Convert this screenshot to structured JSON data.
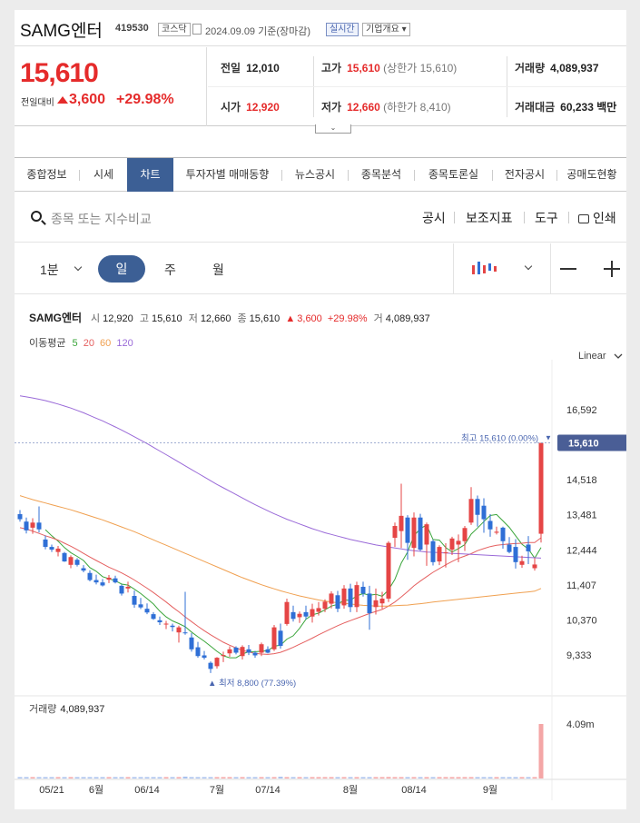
{
  "header": {
    "name": "SAMG엔터",
    "code": "419530",
    "market": "코스닥",
    "date": "2024.09.09",
    "date_suffix": "기준(장마감)",
    "realtime": "실시간",
    "company_info": "기업개요"
  },
  "price": {
    "current": "15,610",
    "change_label": "전일대비",
    "change": "3,600",
    "change_pct": "+29.98%",
    "prev_label": "전일",
    "prev": "12,010",
    "high_label": "고가",
    "high": "15,610",
    "high_sub": "(상한가 15,610)",
    "volume_label": "거래량",
    "volume": "4,089,937",
    "open_label": "시가",
    "open": "12,920",
    "low_label": "저가",
    "low": "12,660",
    "low_sub": "(하한가 8,410)",
    "amount_label": "거래대금",
    "amount": "60,233 백만"
  },
  "tabs": [
    "종합정보",
    "시세",
    "차트",
    "투자자별 매매동향",
    "뉴스공시",
    "종목분석",
    "종목토론실",
    "전자공시",
    "공매도현황"
  ],
  "active_tab": "차트",
  "toolbar": {
    "search_placeholder": "종목 또는 지수비교",
    "disclosure": "공시",
    "indicators": "보조지표",
    "tools": "도구",
    "print": "인쇄"
  },
  "period": {
    "minute": "1분",
    "day": "일",
    "week": "주",
    "month": "월"
  },
  "legend": {
    "name": "SAMG엔터",
    "open_label": "시",
    "open": "12,920",
    "high_label": "고",
    "high": "15,610",
    "low_label": "저",
    "low": "12,660",
    "close_label": "종",
    "close": "15,610",
    "change": "3,600",
    "change_pct": "+29.98%",
    "volume_label": "거",
    "volume": "4,089,937"
  },
  "ma_legend": {
    "label": "이동평균",
    "periods": [
      "5",
      "20",
      "60",
      "120"
    ],
    "colors": [
      "#3aa53a",
      "#e56060",
      "#f0a050",
      "#9a6ad8"
    ]
  },
  "scale_mode": "Linear",
  "high_marker": "최고 15,610 (0.00%)",
  "low_marker": "최저 8,800 (77.39%)",
  "current_badge": "15,610",
  "volume_label": "거래량",
  "volume_value": "4,089,937",
  "volume_axis": "4.09m",
  "chart_data": {
    "type": "candlestick",
    "ylim": [
      8800,
      17100
    ],
    "yticks": [
      "16,592",
      "14,518",
      "13,481",
      "12,444",
      "11,407",
      "10,370",
      "9,333"
    ],
    "ytick_values": [
      16592,
      14518,
      13481,
      12444,
      11407,
      10370,
      9333
    ],
    "xticks": [
      {
        "label": "05/21",
        "index": 5
      },
      {
        "label": "6월",
        "index": 12
      },
      {
        "label": "06/14",
        "index": 20
      },
      {
        "label": "7월",
        "index": 31
      },
      {
        "label": "07/14",
        "index": 39
      },
      {
        "label": "8월",
        "index": 52
      },
      {
        "label": "08/14",
        "index": 62
      },
      {
        "label": "9월",
        "index": 74
      }
    ],
    "ohlc": [
      [
        13500,
        13620,
        13280,
        13350
      ],
      [
        13280,
        13400,
        12930,
        13020
      ],
      [
        13100,
        13380,
        12920,
        13250
      ],
      [
        13250,
        13730,
        12960,
        13050
      ],
      [
        12750,
        12870,
        12460,
        12530
      ],
      [
        12530,
        12600,
        12380,
        12450
      ],
      [
        12380,
        12560,
        12250,
        12480
      ],
      [
        12350,
        12380,
        12090,
        12100
      ],
      [
        12000,
        12280,
        11900,
        12230
      ],
      [
        12150,
        12200,
        11950,
        12000
      ],
      [
        11900,
        11990,
        11780,
        11830
      ],
      [
        11760,
        11840,
        11510,
        11550
      ],
      [
        11550,
        11710,
        11420,
        11480
      ],
      [
        11480,
        11580,
        11360,
        11390
      ],
      [
        11560,
        11700,
        11460,
        11620
      ],
      [
        11600,
        11680,
        11450,
        11480
      ],
      [
        11380,
        11420,
        11090,
        11150
      ],
      [
        11300,
        11500,
        11180,
        11350
      ],
      [
        11080,
        11240,
        10730,
        10820
      ],
      [
        10830,
        11020,
        10690,
        10740
      ],
      [
        10700,
        10860,
        10540,
        10590
      ],
      [
        10540,
        10600,
        10370,
        10400
      ],
      [
        10360,
        10470,
        10220,
        10300
      ],
      [
        10250,
        10340,
        10100,
        10260
      ],
      [
        10200,
        10260,
        10030,
        10160
      ],
      [
        10000,
        10200,
        9700,
        10150
      ],
      [
        10000,
        11200,
        9930,
        9980
      ],
      [
        9850,
        9980,
        9430,
        9500
      ],
      [
        9560,
        9720,
        9250,
        9300
      ],
      [
        9320,
        9450,
        9200,
        9250
      ],
      [
        9100,
        9140,
        8800,
        8920
      ],
      [
        9000,
        9270,
        8930,
        9250
      ],
      [
        9300,
        9430,
        9120,
        9330
      ],
      [
        9380,
        9590,
        9280,
        9500
      ],
      [
        9550,
        9590,
        9350,
        9400
      ],
      [
        9300,
        9620,
        9200,
        9570
      ],
      [
        9500,
        9630,
        9330,
        9400
      ],
      [
        9400,
        9450,
        9250,
        9320
      ],
      [
        9400,
        9700,
        9300,
        9650
      ],
      [
        9500,
        9590,
        9380,
        9400
      ],
      [
        9500,
        10220,
        9450,
        10150
      ],
      [
        10050,
        10260,
        9520,
        9600
      ],
      [
        10250,
        11000,
        10200,
        10900
      ],
      [
        10600,
        10790,
        10320,
        10400
      ],
      [
        10450,
        10620,
        10280,
        10550
      ],
      [
        10600,
        10790,
        10380,
        10470
      ],
      [
        10470,
        10850,
        10290,
        10690
      ],
      [
        10610,
        10900,
        10500,
        10720
      ],
      [
        10700,
        10980,
        10600,
        10910
      ],
      [
        10850,
        11220,
        10710,
        11150
      ],
      [
        11100,
        11230,
        10600,
        10700
      ],
      [
        10800,
        11400,
        10700,
        11300
      ],
      [
        11300,
        11440,
        10600,
        10750
      ],
      [
        10750,
        11500,
        10600,
        11400
      ],
      [
        11350,
        11500,
        11060,
        11150
      ],
      [
        11150,
        11380,
        10080,
        10570
      ],
      [
        10750,
        11300,
        10530,
        10950
      ],
      [
        10860,
        11200,
        10700,
        11000
      ],
      [
        11000,
        12700,
        10900,
        12650
      ],
      [
        12800,
        13250,
        12530,
        13150
      ],
      [
        13000,
        14400,
        12500,
        13450
      ],
      [
        13400,
        13470,
        12150,
        12650
      ],
      [
        12500,
        13550,
        12250,
        13400
      ],
      [
        13400,
        13510,
        12410,
        12450
      ],
      [
        12600,
        13250,
        11970,
        13200
      ],
      [
        12700,
        12750,
        11980,
        12080
      ],
      [
        12100,
        12580,
        11990,
        12530
      ],
      [
        12350,
        12640,
        11920,
        12370
      ],
      [
        12450,
        12830,
        12290,
        12780
      ],
      [
        12600,
        12900,
        12080,
        12710
      ],
      [
        12700,
        13150,
        12410,
        13090
      ],
      [
        13250,
        14300,
        13180,
        13950
      ],
      [
        13950,
        14050,
        13130,
        13480
      ],
      [
        13750,
        13970,
        12950,
        13350
      ],
      [
        13300,
        13500,
        12830,
        13050
      ],
      [
        12950,
        13130,
        12900,
        12980
      ],
      [
        13100,
        13130,
        12480,
        12700
      ],
      [
        12600,
        12820,
        12340,
        12380
      ],
      [
        12530,
        12760,
        11890,
        12080
      ],
      [
        12000,
        12270,
        11910,
        12110
      ],
      [
        12600,
        12850,
        12020,
        12400
      ],
      [
        11900,
        12200,
        11830,
        12010
      ],
      [
        12920,
        15610,
        12660,
        15610
      ]
    ],
    "volumes": [
      40,
      50,
      35,
      45,
      60,
      25,
      30,
      40,
      45,
      30,
      35,
      40,
      30,
      25,
      35,
      40,
      50,
      30,
      45,
      35,
      30,
      40,
      35,
      30,
      25,
      45,
      140,
      60,
      35,
      40,
      50,
      35,
      30,
      45,
      40,
      25,
      30,
      35,
      40,
      30,
      45,
      130,
      70,
      50,
      40,
      35,
      45,
      40,
      50,
      55,
      45,
      60,
      50,
      40,
      45,
      70,
      50,
      45,
      110,
      90,
      100,
      70,
      80,
      60,
      75,
      55,
      50,
      45,
      60,
      50,
      55,
      95,
      60,
      50,
      45,
      40,
      50,
      45,
      55,
      40,
      45,
      40,
      4090
    ],
    "ma_lines": [
      {
        "period": "5",
        "color": "#3aa53a",
        "values": [
          null,
          null,
          null,
          null,
          13040,
          12860,
          12700,
          12510,
          12360,
          12250,
          12130,
          11920,
          11810,
          11650,
          11590,
          11530,
          11430,
          11400,
          11280,
          11150,
          11000,
          10840,
          10630,
          10460,
          10340,
          10260,
          10170,
          10010,
          9870,
          9740,
          9590,
          9440,
          9310,
          9250,
          9250,
          9360,
          9430,
          9430,
          9440,
          9460,
          9590,
          9620,
          9800,
          9900,
          10120,
          10390,
          10520,
          10570,
          10670,
          10780,
          10830,
          10960,
          10950,
          11080,
          11150,
          11100,
          11130,
          11070,
          11260,
          11570,
          12050,
          12380,
          12860,
          13070,
          13180,
          12750,
          12730,
          12510,
          12380,
          12480,
          12600,
          12910,
          13090,
          13280,
          13460,
          13490,
          13300,
          13110,
          12860,
          12610,
          12470,
          12200,
          12510
        ]
      },
      {
        "period": "20",
        "color": "#e56060",
        "values": [
          13100,
          13060,
          13000,
          12930,
          12860,
          12800,
          12730,
          12640,
          12550,
          12450,
          12340,
          12230,
          12130,
          12030,
          11930,
          11850,
          11760,
          11660,
          11550,
          11430,
          11310,
          11180,
          11040,
          10900,
          10750,
          10610,
          10460,
          10320,
          10180,
          10050,
          9930,
          9820,
          9710,
          9620,
          9540,
          9470,
          9420,
          9380,
          9360,
          9350,
          9370,
          9410,
          9480,
          9560,
          9650,
          9740,
          9830,
          9930,
          10020,
          10110,
          10200,
          10280,
          10350,
          10420,
          10490,
          10560,
          10620,
          10680,
          10780,
          10900,
          11050,
          11210,
          11380,
          11520,
          11650,
          11780,
          11890,
          12000,
          12100,
          12190,
          12260,
          12330,
          12420,
          12480,
          12540,
          12580,
          12600,
          12620,
          12630,
          12640,
          12660,
          12660,
          12800
        ]
      },
      {
        "period": "60",
        "color": "#f0a050",
        "values": [
          14050,
          13990,
          13930,
          13880,
          13830,
          13780,
          13730,
          13680,
          13630,
          13570,
          13510,
          13450,
          13390,
          13330,
          13260,
          13190,
          13120,
          13050,
          12980,
          12900,
          12820,
          12740,
          12660,
          12580,
          12500,
          12420,
          12340,
          12260,
          12180,
          12100,
          12020,
          11940,
          11860,
          11780,
          11700,
          11620,
          11550,
          11480,
          11410,
          11350,
          11290,
          11230,
          11180,
          11130,
          11080,
          11040,
          11000,
          10960,
          10930,
          10900,
          10880,
          10860,
          10840,
          10820,
          10800,
          10790,
          10780,
          10780,
          10780,
          10790,
          10800,
          10810,
          10830,
          10850,
          10870,
          10900,
          10920,
          10940,
          10960,
          10980,
          11000,
          11020,
          11040,
          11060,
          11080,
          11100,
          11120,
          11140,
          11160,
          11180,
          11200,
          11220,
          11300
        ]
      },
      {
        "period": "120",
        "color": "#9a6ad8",
        "values": [
          17000,
          16970,
          16940,
          16900,
          16860,
          16810,
          16760,
          16700,
          16640,
          16570,
          16500,
          16420,
          16340,
          16260,
          16170,
          16080,
          15990,
          15890,
          15790,
          15690,
          15590,
          15480,
          15370,
          15260,
          15150,
          15040,
          14930,
          14820,
          14710,
          14600,
          14490,
          14380,
          14280,
          14180,
          14080,
          13980,
          13880,
          13780,
          13690,
          13600,
          13510,
          13430,
          13350,
          13280,
          13210,
          13140,
          13070,
          13010,
          12950,
          12900,
          12850,
          12800,
          12750,
          12710,
          12670,
          12630,
          12590,
          12560,
          12530,
          12500,
          12470,
          12440,
          12420,
          12400,
          12380,
          12370,
          12360,
          12350,
          12340,
          12330,
          12320,
          12310,
          12300,
          12290,
          12280,
          12270,
          12260,
          12250,
          12240,
          12230,
          12220,
          12210,
          12200
        ]
      }
    ],
    "up_color": "#e54545",
    "down_color": "#2f6fd6"
  }
}
